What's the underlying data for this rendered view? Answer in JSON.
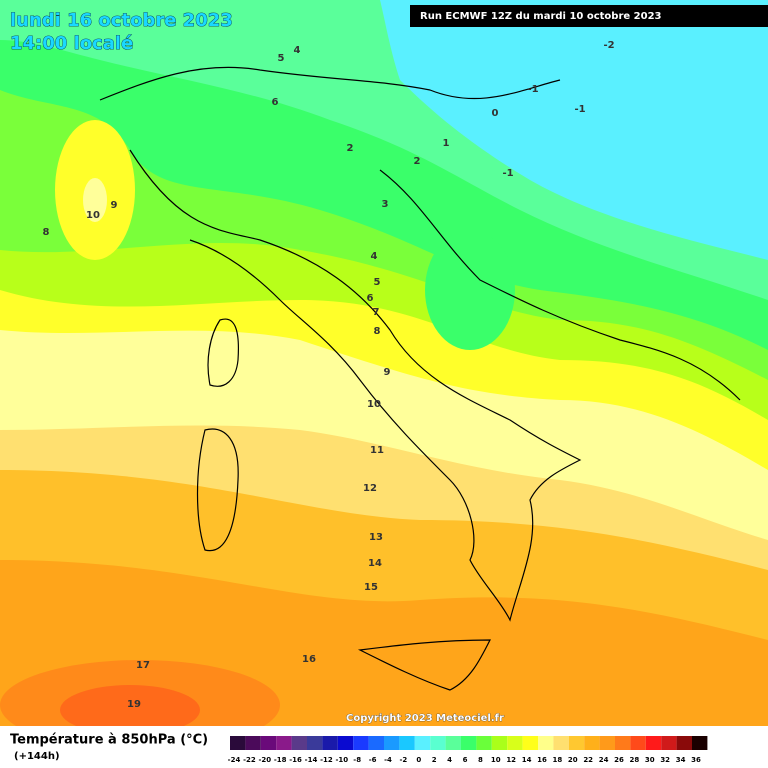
{
  "header": {
    "date": "lundi 16 octobre 2023",
    "time": "14:00 localé",
    "run": "Run ECMWF 12Z du mardi 10 octobre 2023"
  },
  "map": {
    "contour_labels": [
      4,
      5,
      6,
      2,
      1,
      0,
      -1,
      -1,
      -2,
      2,
      -1,
      3,
      10,
      9,
      8,
      4,
      5,
      6,
      7,
      8,
      9,
      10,
      11,
      12,
      13,
      14,
      15,
      16,
      17,
      19
    ],
    "copyright": "Copyright 2023 Meteociel.fr"
  },
  "footer": {
    "title": "Température à 850hPa (°C)",
    "lead": "(+144h)"
  },
  "legend": {
    "ticks": [
      -24,
      -22,
      -20,
      -18,
      -16,
      -14,
      -12,
      -10,
      -8,
      -6,
      -4,
      -2,
      0,
      2,
      4,
      6,
      8,
      10,
      12,
      14,
      16,
      18,
      20,
      22,
      24,
      26,
      28,
      30,
      32,
      34,
      36
    ],
    "colors": [
      "#2a0a3a",
      "#4b0a5a",
      "#6a0a7a",
      "#8a1a8a",
      "#5a3a8a",
      "#3a3a9a",
      "#1a1aaa",
      "#0a0ad0",
      "#1a3aff",
      "#1a6aff",
      "#1a9aff",
      "#1ac8ff",
      "#5af0ff",
      "#5affd0",
      "#5aff9a",
      "#3aff6a",
      "#6aff3a",
      "#aaff1a",
      "#d8ff1a",
      "#ffff1a",
      "#ffff8a",
      "#ffe070",
      "#ffc830",
      "#ffb01a",
      "#ff9a1a",
      "#ff7a1a",
      "#ff4a1a",
      "#ff1a1a",
      "#d01a1a",
      "#8a0a0a",
      "#1a0000"
    ]
  }
}
